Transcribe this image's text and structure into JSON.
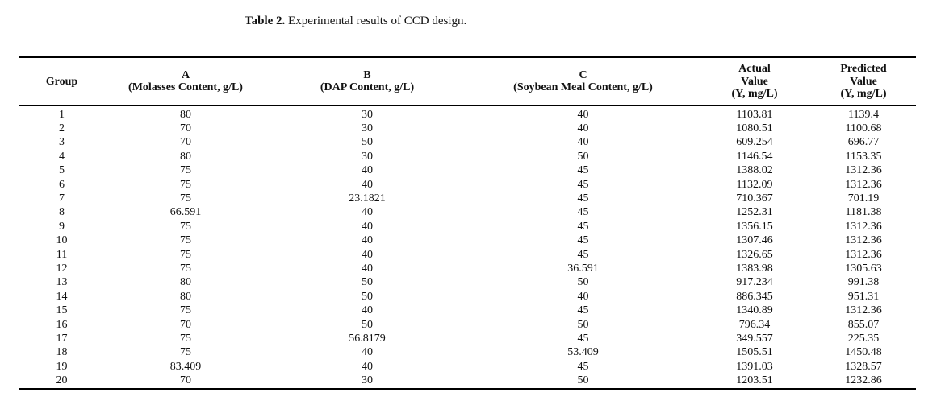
{
  "caption": {
    "label": "Table 2.",
    "text": "Experimental results of CCD design."
  },
  "table": {
    "columns": [
      {
        "id": "group",
        "lines": [
          "Group"
        ]
      },
      {
        "id": "molasses",
        "lines": [
          "A",
          "(Molasses Content, g/L)"
        ]
      },
      {
        "id": "dap",
        "lines": [
          "B",
          "(DAP Content, g/L)"
        ]
      },
      {
        "id": "soybean",
        "lines": [
          "C",
          "(Soybean Meal Content, g/L)"
        ]
      },
      {
        "id": "actual-value",
        "lines": [
          "Actual",
          "Value",
          "(Y, mg/L)"
        ]
      },
      {
        "id": "predicted-value",
        "lines": [
          "Predicted",
          "Value",
          "(Y, mg/L)"
        ]
      }
    ],
    "rows": [
      [
        "1",
        "80",
        "30",
        "40",
        "1103.81",
        "1139.4"
      ],
      [
        "2",
        "70",
        "30",
        "40",
        "1080.51",
        "1100.68"
      ],
      [
        "3",
        "70",
        "50",
        "40",
        "609.254",
        "696.77"
      ],
      [
        "4",
        "80",
        "30",
        "50",
        "1146.54",
        "1153.35"
      ],
      [
        "5",
        "75",
        "40",
        "45",
        "1388.02",
        "1312.36"
      ],
      [
        "6",
        "75",
        "40",
        "45",
        "1132.09",
        "1312.36"
      ],
      [
        "7",
        "75",
        "23.1821",
        "45",
        "710.367",
        "701.19"
      ],
      [
        "8",
        "66.591",
        "40",
        "45",
        "1252.31",
        "1181.38"
      ],
      [
        "9",
        "75",
        "40",
        "45",
        "1356.15",
        "1312.36"
      ],
      [
        "10",
        "75",
        "40",
        "45",
        "1307.46",
        "1312.36"
      ],
      [
        "11",
        "75",
        "40",
        "45",
        "1326.65",
        "1312.36"
      ],
      [
        "12",
        "75",
        "40",
        "36.591",
        "1383.98",
        "1305.63"
      ],
      [
        "13",
        "80",
        "50",
        "50",
        "917.234",
        "991.38"
      ],
      [
        "14",
        "80",
        "50",
        "40",
        "886.345",
        "951.31"
      ],
      [
        "15",
        "75",
        "40",
        "45",
        "1340.89",
        "1312.36"
      ],
      [
        "16",
        "70",
        "50",
        "50",
        "796.34",
        "855.07"
      ],
      [
        "17",
        "75",
        "56.8179",
        "45",
        "349.557",
        "225.35"
      ],
      [
        "18",
        "75",
        "40",
        "53.409",
        "1505.51",
        "1450.48"
      ],
      [
        "19",
        "83.409",
        "40",
        "45",
        "1391.03",
        "1328.57"
      ],
      [
        "20",
        "70",
        "30",
        "50",
        "1203.51",
        "1232.86"
      ]
    ]
  },
  "colors": {
    "background": "#ffffff",
    "text": "#121212",
    "rule": "#000000"
  }
}
